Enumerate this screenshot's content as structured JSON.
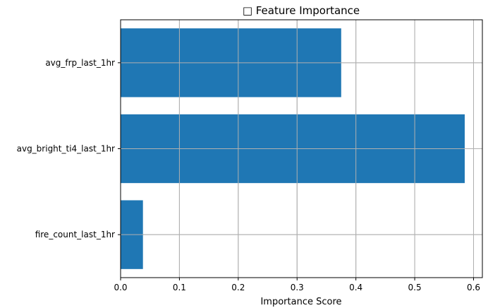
{
  "chart_data": {
    "type": "bar",
    "orientation": "horizontal",
    "title": "□ Feature Importance",
    "xlabel": "Importance Score",
    "ylabel": "",
    "categories": [
      "avg_frp_last_1hr",
      "avg_bright_ti4_last_1hr",
      "fire_count_last_1hr"
    ],
    "values": [
      0.375,
      0.585,
      0.038
    ],
    "xlim": [
      0,
      0.615
    ],
    "xticks": [
      0.0,
      0.1,
      0.2,
      0.3,
      0.4,
      0.5,
      0.6
    ],
    "xtick_labels": [
      "0.0",
      "0.1",
      "0.2",
      "0.3",
      "0.4",
      "0.5",
      "0.6"
    ],
    "grid": true,
    "bar_color": "#1f77b4",
    "grid_color": "#b0b0b0"
  }
}
